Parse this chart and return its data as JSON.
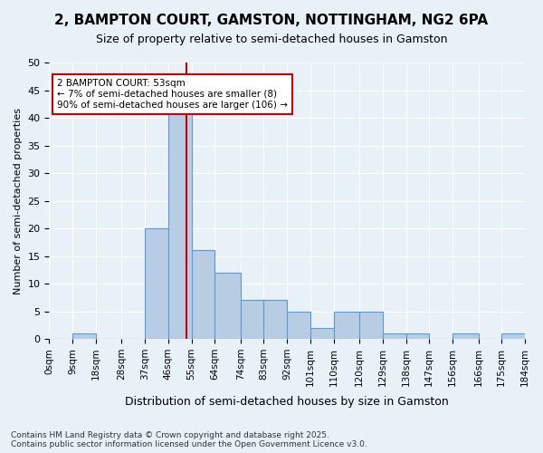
{
  "title": "2, BAMPTON COURT, GAMSTON, NOTTINGHAM, NG2 6PA",
  "subtitle": "Size of property relative to semi-detached houses in Gamston",
  "xlabel": "Distribution of semi-detached houses by size in Gamston",
  "ylabel": "Number of semi-detached properties",
  "bin_labels": [
    "0sqm",
    "9sqm",
    "18sqm",
    "28sqm",
    "37sqm",
    "46sqm",
    "55sqm",
    "64sqm",
    "74sqm",
    "83sqm",
    "92sqm",
    "101sqm",
    "110sqm",
    "120sqm",
    "129sqm",
    "138sqm",
    "147sqm",
    "156sqm",
    "166sqm",
    "175sqm",
    "184sqm"
  ],
  "bin_edges": [
    0,
    9,
    18,
    28,
    37,
    46,
    55,
    64,
    74,
    83,
    92,
    101,
    110,
    120,
    129,
    138,
    147,
    156,
    166,
    175,
    184
  ],
  "bar_values": [
    0,
    1,
    0,
    0,
    20,
    42,
    16,
    12,
    7,
    7,
    5,
    2,
    5,
    5,
    1,
    1,
    0,
    1,
    0,
    1
  ],
  "bar_color": "#b8cce4",
  "bar_edge_color": "#5b9bd5",
  "property_value": 53,
  "annotation_title": "2 BAMPTON COURT: 53sqm",
  "annotation_line1": "← 7% of semi-detached houses are smaller (8)",
  "annotation_line2": "90% of semi-detached houses are larger (106) →",
  "annotation_box_color": "#ffffff",
  "annotation_box_edge": "#cc0000",
  "vline_color": "#cc0000",
  "ylim": [
    0,
    50
  ],
  "yticks": [
    0,
    5,
    10,
    15,
    20,
    25,
    30,
    35,
    40,
    45,
    50
  ],
  "footnote1": "Contains HM Land Registry data © Crown copyright and database right 2025.",
  "footnote2": "Contains public sector information licensed under the Open Government Licence v3.0.",
  "bg_color": "#e8f0f8",
  "plot_bg_color": "#e8f0f8",
  "grid_color": "#ffffff"
}
